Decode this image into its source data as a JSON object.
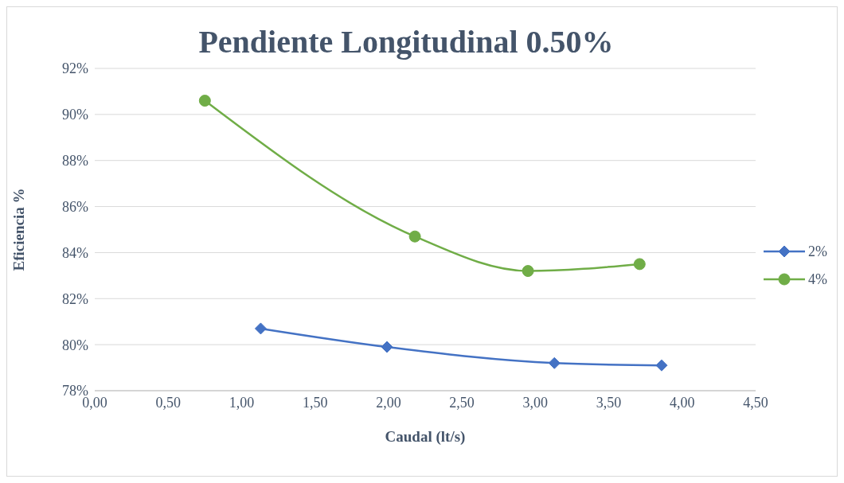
{
  "chart_data": {
    "type": "line",
    "title": "Pendiente Longitudinal 0.50%",
    "xlabel": "Caudal (lt/s)",
    "ylabel": "Eficiencia %",
    "xlim": [
      0,
      4.5
    ],
    "xticks": [
      {
        "value": 0,
        "label": "0,00"
      },
      {
        "value": 0.5,
        "label": "0,50"
      },
      {
        "value": 1,
        "label": "1,00"
      },
      {
        "value": 1.5,
        "label": "1,50"
      },
      {
        "value": 2,
        "label": "2,00"
      },
      {
        "value": 2.5,
        "label": "2,50"
      },
      {
        "value": 3,
        "label": "3,00"
      },
      {
        "value": 3.5,
        "label": "3,50"
      },
      {
        "value": 4,
        "label": "4,00"
      },
      {
        "value": 4.5,
        "label": "4,50"
      }
    ],
    "ylim": [
      78,
      92
    ],
    "yticks": [
      {
        "value": 78,
        "label": "78%"
      },
      {
        "value": 80,
        "label": "80%"
      },
      {
        "value": 82,
        "label": "82%"
      },
      {
        "value": 84,
        "label": "84%"
      },
      {
        "value": 86,
        "label": "86%"
      },
      {
        "value": 88,
        "label": "88%"
      },
      {
        "value": 90,
        "label": "90%"
      },
      {
        "value": 92,
        "label": "92%"
      }
    ],
    "grid": "y",
    "legend": "right",
    "series": [
      {
        "name": "2%",
        "color": "#4472c4",
        "marker": "diamond",
        "x": [
          1.13,
          1.99,
          3.13,
          3.86
        ],
        "values": [
          80.7,
          79.9,
          79.2,
          79.1
        ]
      },
      {
        "name": "4%",
        "color": "#70ad47",
        "marker": "circle",
        "x": [
          0.75,
          2.18,
          2.95,
          3.71
        ],
        "values": [
          90.6,
          84.7,
          83.2,
          83.5
        ]
      }
    ]
  }
}
